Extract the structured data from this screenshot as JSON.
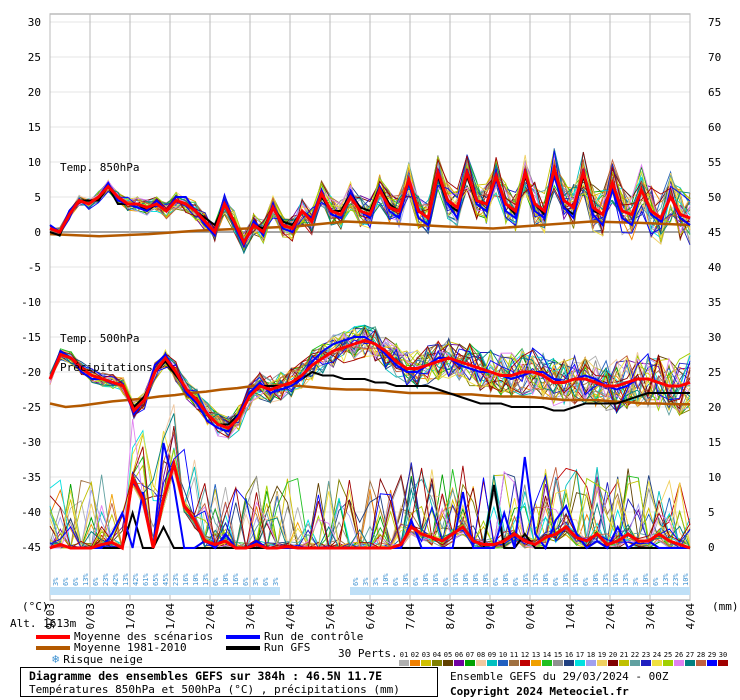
{
  "chart_data": {
    "type": "line",
    "left_axis_ticks": [
      "30",
      "25",
      "20",
      "15",
      "10",
      "5",
      "0",
      "-5",
      "-10",
      "-15",
      "-20",
      "-25",
      "-30",
      "-35",
      "-40",
      "-45"
    ],
    "right_axis_ticks": [
      "75",
      "70",
      "65",
      "60",
      "55",
      "50",
      "45",
      "40",
      "35",
      "30",
      "25",
      "20",
      "15",
      "10",
      "5",
      "0"
    ],
    "left_axis_unit": "(°C)",
    "right_axis_unit": "(mm)",
    "x_ticks": [
      "29/03",
      "30/03",
      "31/03",
      "01/04",
      "02/04",
      "03/04",
      "04/04",
      "05/04",
      "06/04",
      "07/04",
      "08/04",
      "09/04",
      "10/04",
      "11/04",
      "12/04",
      "13/04",
      "14/04"
    ],
    "panel_labels": [
      "Temp. 850hPa",
      "Temp. 500hPa",
      "Précipitations"
    ],
    "altitude_label": "Alt. 1613m",
    "t850": {
      "mean_scenarios": [
        0.5,
        0,
        2.5,
        4.5,
        4,
        5,
        6.5,
        5,
        4,
        4,
        3.5,
        4,
        3,
        4.5,
        4,
        3,
        1.5,
        0,
        4,
        1.5,
        -1.5,
        1,
        0,
        3.5,
        1,
        0.5,
        3,
        1.5,
        5.5,
        3,
        2.5,
        5,
        3,
        2.5,
        6,
        3.5,
        3,
        7.5,
        3,
        2,
        8.5,
        4.5,
        3.5,
        8.5,
        4.5,
        4,
        8,
        4,
        3,
        8.5,
        4,
        3,
        9,
        4.5,
        3.5,
        8.5,
        3.5,
        2.5,
        7,
        3,
        2.5,
        6,
        3,
        2,
        5,
        2.5,
        2
      ],
      "control_run": [
        1,
        0,
        3,
        4.5,
        4,
        5,
        7,
        4.5,
        4,
        3.5,
        3,
        4.5,
        3,
        5,
        5,
        3,
        1,
        -0.5,
        4.5,
        1,
        -2,
        1.5,
        -0.5,
        4,
        0.5,
        0,
        3,
        2,
        6,
        2.5,
        2,
        5.5,
        3,
        2,
        6.5,
        3,
        2,
        7,
        2,
        1,
        9,
        4,
        2,
        9,
        4,
        3,
        7.5,
        3,
        2,
        9,
        3,
        2,
        8,
        3.5,
        2,
        9,
        2.5,
        1,
        6,
        2,
        1,
        6,
        2.5,
        1.5,
        5,
        2,
        1
      ],
      "gfs_run": [
        0,
        -0.5,
        3,
        4.5,
        4.5,
        4.5,
        6.5,
        4,
        4,
        4,
        3,
        4,
        3,
        4.5,
        4,
        3,
        2,
        1,
        4,
        1,
        -1.5,
        1,
        0.5,
        3.5,
        1.5,
        1,
        3,
        2,
        5,
        3,
        3,
        5.5,
        3.5,
        3,
        6.5,
        4,
        3,
        7,
        3,
        2,
        8,
        4,
        3,
        8,
        4,
        3,
        8,
        4,
        2.5,
        8,
        4,
        2.5,
        9,
        3.5,
        2.5,
        8,
        3,
        2.5,
        6.5,
        3,
        2.5,
        6,
        3,
        2,
        5,
        2,
        1
      ],
      "normal_1981_2010": [
        -0.3,
        -0.6,
        -0.3,
        0.2,
        0.5,
        0.8,
        1.5,
        1.2,
        0.8,
        0.5,
        1.0,
        1.5,
        1.3,
        1.0
      ]
    },
    "t500": {
      "mean_scenarios": [
        -21,
        -17.5,
        -18,
        -19.5,
        -20.5,
        -21,
        -21.5,
        -22,
        -25.5,
        -24,
        -20,
        -18,
        -20,
        -22.5,
        -24,
        -26,
        -27.5,
        -28,
        -26.5,
        -23.5,
        -22,
        -22.5,
        -22,
        -21.5,
        -20.5,
        -19,
        -18,
        -17,
        -16.5,
        -16,
        -15.5,
        -16,
        -17,
        -18.5,
        -19.5,
        -19.5,
        -19,
        -18.5,
        -18,
        -18.5,
        -19,
        -19.5,
        -20,
        -20.5,
        -20.5,
        -20,
        -20,
        -20.5,
        -21.5,
        -21.5,
        -21,
        -21,
        -21.5,
        -22,
        -22,
        -21.5,
        -21,
        -21,
        -21.5,
        -22,
        -22,
        -21.5
      ],
      "control_run": [
        -21,
        -17,
        -18,
        -20,
        -21,
        -21,
        -21.5,
        -22,
        -26,
        -24,
        -19,
        -17.5,
        -20,
        -23,
        -24.5,
        -27,
        -28,
        -28.5,
        -26,
        -23,
        -21.5,
        -23,
        -22.5,
        -22,
        -21,
        -18.5,
        -17,
        -16,
        -15.5,
        -15,
        -15,
        -16,
        -17.5,
        -19,
        -20,
        -20,
        -19,
        -18,
        -18,
        -19,
        -19.5,
        -20,
        -20,
        -20.5,
        -21,
        -20.5,
        -20,
        -20,
        -21,
        -21.5,
        -21,
        -20.5,
        -21,
        -22,
        -22.5,
        -22,
        -21,
        -21,
        -21.5,
        -22,
        -22,
        -21.5
      ],
      "gfs_run": [
        -21,
        -17,
        -18,
        -19.5,
        -20.5,
        -21,
        -21.5,
        -22,
        -25,
        -23.5,
        -20,
        -18.5,
        -20.5,
        -22.5,
        -24,
        -26,
        -27.5,
        -27.5,
        -26,
        -23,
        -22,
        -22,
        -22,
        -21.5,
        -21,
        -20,
        -20.5,
        -20.5,
        -21,
        -21,
        -21,
        -21.5,
        -21.5,
        -22,
        -22,
        -22,
        -22,
        -22.5,
        -23,
        -23.5,
        -24,
        -24.5,
        -24.5,
        -24.5,
        -25,
        -25,
        -25,
        -25,
        -25.5,
        -25.5,
        -25,
        -24.5,
        -24.5,
        -24.5,
        -24.5,
        -24,
        -23.5,
        -23,
        -23,
        -23,
        -23,
        -23
      ],
      "normal_1981_2010": [
        -24.5,
        -25,
        -24.8,
        -24.5,
        -24.2,
        -24,
        -23.8,
        -23.5,
        -23.3,
        -23,
        -22.8,
        -22.5,
        -22.3,
        -22,
        -22,
        -21.8,
        -22,
        -22.2,
        -22.4,
        -22.5,
        -22.5,
        -22.6,
        -22.8,
        -23,
        -23,
        -23,
        -23.2,
        -23.2,
        -23.4,
        -23.5,
        -23.5,
        -23.6,
        -23.8,
        -24,
        -24,
        -24,
        -24.2,
        -24.3,
        -24.5,
        -24.5,
        -24.6,
        -24.6
      ]
    },
    "precip": {
      "mean_scenarios": [
        0,
        0.5,
        0,
        0,
        0,
        0.5,
        0.8,
        0,
        10,
        7,
        0,
        7,
        12,
        6,
        4,
        1,
        0.5,
        1,
        0,
        0,
        0.5,
        0,
        0,
        0.2,
        0,
        0,
        0,
        0,
        0,
        0,
        0,
        0,
        0,
        0,
        0.5,
        3,
        2,
        1.5,
        1,
        2,
        3,
        1,
        0.5,
        0.5,
        1,
        2,
        1,
        0.5,
        1.5,
        2,
        3,
        1.5,
        1,
        2,
        0.5,
        1,
        2,
        1,
        1,
        2,
        1,
        0.5,
        0
      ],
      "control_run": [
        0,
        0.5,
        0,
        0,
        0,
        0,
        2,
        5,
        0,
        8,
        0,
        15,
        9,
        0,
        0,
        1,
        0,
        2,
        0,
        0,
        1,
        0,
        0,
        0,
        0,
        0,
        0,
        0,
        0,
        0,
        0,
        0,
        0,
        0,
        0,
        4,
        0,
        0,
        0,
        0,
        8,
        0,
        0,
        0,
        5,
        0,
        13,
        2,
        0,
        4,
        6,
        2,
        0,
        1,
        0,
        3,
        0,
        1,
        1,
        0,
        0,
        0,
        0
      ],
      "gfs_run": [
        0,
        0.5,
        0,
        0,
        0,
        0,
        0,
        0,
        5,
        0,
        0,
        3,
        0,
        0,
        0,
        0,
        0,
        0,
        0,
        0,
        0,
        0,
        0,
        0,
        0,
        0,
        0,
        0,
        0,
        0,
        0,
        0,
        0,
        0,
        0,
        0,
        0,
        0,
        0,
        0,
        0,
        0,
        0,
        9,
        0,
        0,
        2,
        0,
        0,
        0,
        0,
        0,
        0,
        0,
        0,
        0,
        0,
        0,
        0,
        0,
        0,
        0,
        0
      ]
    },
    "snow_risk": [
      "3%",
      "6%",
      "6%",
      "13%",
      "6%",
      "23%",
      "42%",
      "13%",
      "42%",
      "61%",
      "65%",
      "45%",
      "23%",
      "16%",
      "10%",
      "13%",
      "6%",
      "10%",
      "16%",
      "6%",
      "3%",
      "6%",
      "3%",
      "",
      "",
      "",
      "",
      "",
      "",
      "",
      "6%",
      "3%",
      "3%",
      "10%",
      "6%",
      "10%",
      "6%",
      "10%",
      "16%",
      "6%",
      "16%",
      "10%",
      "10%",
      "10%",
      "6%",
      "10%",
      "6%",
      "16%",
      "13%",
      "10%",
      "6%",
      "10%",
      "16%",
      "6%",
      "10%",
      "13%",
      "16%",
      "13%",
      "3%",
      "10%",
      "6%",
      "13%",
      "23%",
      "10%"
    ]
  },
  "legend": {
    "mean_label": "Moyenne des scénarios",
    "normal_label": "Moyenne 1981-2010",
    "snow_label": "Risque neige",
    "control_label": "Run de contrôle",
    "gfs_label": "Run GFS",
    "perts_label": "30 Perts.",
    "colors": {
      "mean": "#ff0000",
      "normal": "#b35900",
      "control": "#0000ff",
      "gfs": "#000000",
      "snow": "#3a8fd0"
    },
    "perturbations": [
      {
        "id": "01",
        "color": "#b0b0b0"
      },
      {
        "id": "02",
        "color": "#f08000"
      },
      {
        "id": "03",
        "color": "#d0c000"
      },
      {
        "id": "04",
        "color": "#808000"
      },
      {
        "id": "05",
        "color": "#604000"
      },
      {
        "id": "06",
        "color": "#7000a0"
      },
      {
        "id": "07",
        "color": "#00a000"
      },
      {
        "id": "08",
        "color": "#f0c8a0"
      },
      {
        "id": "09",
        "color": "#00c0c0"
      },
      {
        "id": "10",
        "color": "#2060c0"
      },
      {
        "id": "11",
        "color": "#a07040"
      },
      {
        "id": "12",
        "color": "#c00000"
      },
      {
        "id": "13",
        "color": "#f0a000"
      },
      {
        "id": "14",
        "color": "#20c020"
      },
      {
        "id": "15",
        "color": "#909090"
      },
      {
        "id": "16",
        "color": "#204080"
      },
      {
        "id": "17",
        "color": "#00e0e0"
      },
      {
        "id": "18",
        "color": "#a0a0f0"
      },
      {
        "id": "19",
        "color": "#f0d060"
      },
      {
        "id": "20",
        "color": "#800000"
      },
      {
        "id": "21",
        "color": "#c0c000"
      },
      {
        "id": "22",
        "color": "#60a0a0"
      },
      {
        "id": "23",
        "color": "#2020c0"
      },
      {
        "id": "24",
        "color": "#f0e040"
      },
      {
        "id": "25",
        "color": "#a0d000"
      },
      {
        "id": "26",
        "color": "#e080f0"
      },
      {
        "id": "27",
        "color": "#008080"
      },
      {
        "id": "28",
        "color": "#c06040"
      },
      {
        "id": "29",
        "color": "#0000ff"
      },
      {
        "id": "30",
        "color": "#a00000"
      }
    ]
  },
  "footer": {
    "title": "Diagramme des ensembles GEFS sur 384h : 46.5N 11.7E",
    "subtitle": "Températures 850hPa et 500hPa (°C) , précipitations (mm)",
    "run_info": "Ensemble GEFS du 29/03/2024 - 00Z",
    "copyright": "Copyright 2024 Meteociel.fr"
  }
}
